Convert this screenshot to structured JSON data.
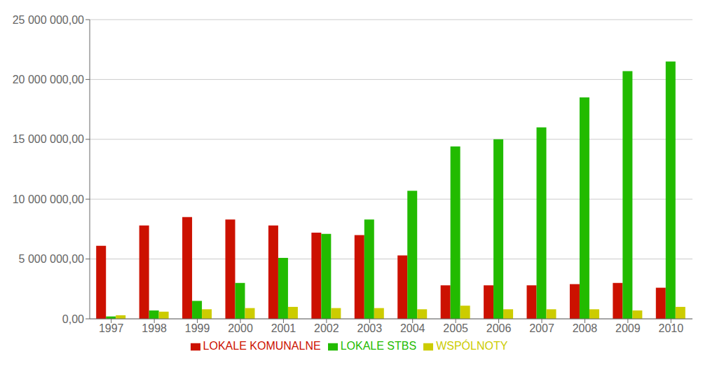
{
  "chart_data": {
    "type": "bar",
    "categories": [
      "1997",
      "1998",
      "1999",
      "2000",
      "2001",
      "2002",
      "2003",
      "2004",
      "2005",
      "2006",
      "2007",
      "2008",
      "2009",
      "2010"
    ],
    "series": [
      {
        "name": "LOKALE KOMUNALNE",
        "color": "#cc1100",
        "values": [
          6100000,
          7800000,
          8500000,
          8300000,
          7800000,
          7200000,
          7000000,
          5300000,
          2800000,
          2800000,
          2800000,
          2900000,
          3000000,
          2600000
        ]
      },
      {
        "name": "LOKALE STBS",
        "color": "#22bb00",
        "values": [
          200000,
          700000,
          1500000,
          3000000,
          5100000,
          7100000,
          8300000,
          10700000,
          14400000,
          15000000,
          16000000,
          18500000,
          20700000,
          21500000
        ]
      },
      {
        "name": "WSPÓLNOTY",
        "color": "#cccc00",
        "values": [
          300000,
          600000,
          800000,
          900000,
          1000000,
          900000,
          900000,
          800000,
          1100000,
          800000,
          800000,
          800000,
          700000,
          1000000
        ]
      }
    ],
    "ylim": [
      0,
      25000000
    ],
    "yticks": [
      {
        "value": 0,
        "label": "0,00"
      },
      {
        "value": 5000000,
        "label": "5 000 000,00"
      },
      {
        "value": 10000000,
        "label": "10 000 000,00"
      },
      {
        "value": 15000000,
        "label": "15 000 000,00"
      },
      {
        "value": 20000000,
        "label": "20 000 000,00"
      },
      {
        "value": 25000000,
        "label": "25 000 000,00"
      }
    ],
    "grid": true,
    "legend": "bottom"
  }
}
